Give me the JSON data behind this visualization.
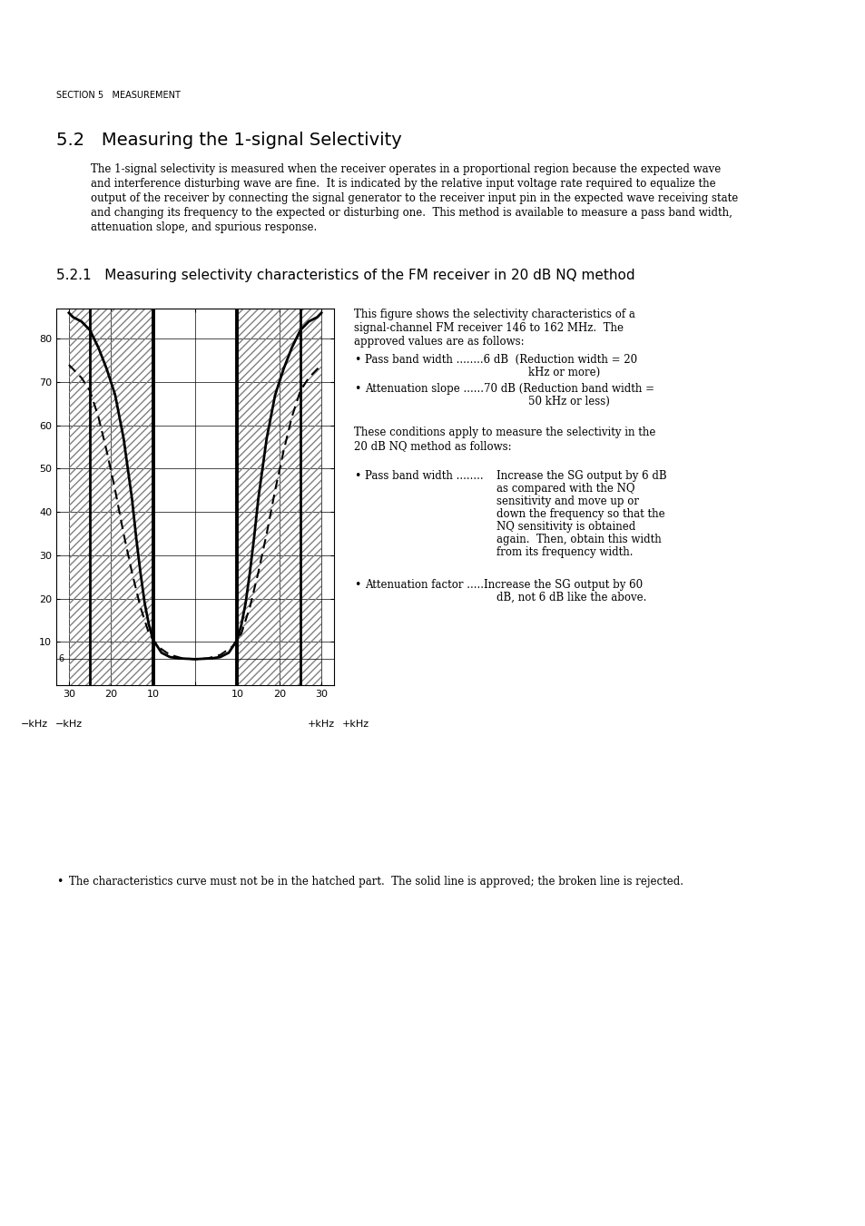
{
  "page_width": 9.54,
  "page_height": 13.51,
  "bg_color": "#ffffff",
  "header_text": "SECTION 5   MEASUREMENT",
  "section_title": "5.2   Measuring the 1-signal Selectivity",
  "body_text_lines": [
    "The 1-signal selectivity is measured when the receiver operates in a proportional region because the expected wave",
    "and interference disturbing wave are fine.  It is indicated by the relative input voltage rate required to equalize the",
    "output of the receiver by connecting the signal generator to the receiver input pin in the expected wave receiving state",
    "and changing its frequency to the expected or disturbing one.  This method is available to measure a pass band width,",
    "attenuation slope, and spurious response."
  ],
  "subsection_title": "5.2.1   Measuring selectivity characteristics of the FM receiver in 20 dB NQ method",
  "right_col_lines_1": [
    "This figure shows the selectivity characteristics of a",
    "signal-channel FM receiver 146 to 162 MHz.  The",
    "approved values are as follows:"
  ],
  "right_col_lines_2": [
    "These conditions apply to measure the selectivity in the",
    "20 dB NQ method as follows:"
  ],
  "bullet3_body": [
    "Increase the SG output by 6 dB",
    "as compared with the NQ",
    "sensitivity and move up or",
    "down the frequency so that the",
    "NQ sensitivity is obtained",
    "again.  Then, obtain this width",
    "from its frequency width."
  ],
  "footer_bullet": "The characteristics curve must not be in the hatched part.  The solid line is approved; the broken line is rejected.",
  "chart_xlabel_left": "−kHz",
  "chart_xlabel_right": "+kHz",
  "chart_xtick_labels": [
    "30",
    "20",
    "10",
    "",
    "10",
    "20",
    "30"
  ],
  "chart_ytick_values": [
    10,
    20,
    30,
    40,
    50,
    60,
    70,
    80
  ],
  "chart_y6_label": "6"
}
